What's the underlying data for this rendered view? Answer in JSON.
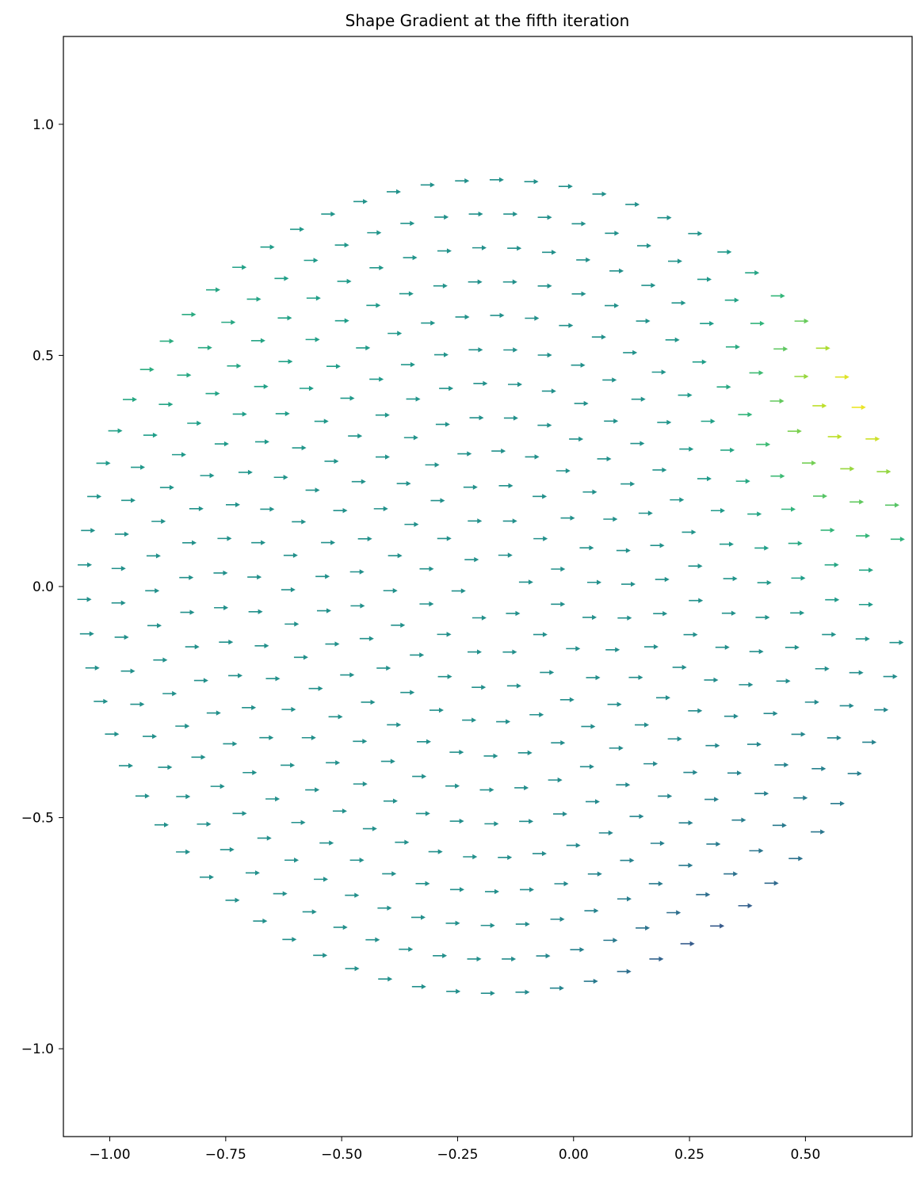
{
  "chart_data": {
    "type": "quiver",
    "title": "Shape Gradient at the fifth iteration",
    "xlabel": "",
    "ylabel": "",
    "xlim": [
      -1.1,
      0.73
    ],
    "ylim": [
      -1.19,
      1.19
    ],
    "xticks": [
      -1.0,
      -0.75,
      -0.5,
      -0.25,
      0.0,
      0.25,
      0.5
    ],
    "xtick_labels": [
      "−1.00",
      "−0.75",
      "−0.50",
      "−0.25",
      "0.00",
      "0.25",
      "0.50"
    ],
    "yticks": [
      1.0,
      0.5,
      0.0,
      -0.5,
      -1.0
    ],
    "ytick_labels": [
      "1.0",
      "0.5",
      "0.0",
      "−0.5",
      "−1.0"
    ],
    "grid": false,
    "colormap": "viridis",
    "domain": {
      "shape": "disk cut by vertical line",
      "center": [
        -0.175,
        0.0
      ],
      "radius": 0.88,
      "x_max": 0.7,
      "rings": 12
    },
    "vector_direction": [
      1,
      0
    ],
    "magnitude_field": {
      "description": "low at bottom-right, high (yellow) near right edge around y=0.45, mid elsewhere",
      "base": 0.5,
      "high_peak": {
        "x": 0.63,
        "y": 0.42,
        "amp": 0.48
      },
      "low_peak": {
        "x": 0.45,
        "y": -0.97,
        "amp": -0.5
      }
    },
    "colors": {
      "low": "#440154",
      "mid": "#21918c",
      "high": "#fde725"
    }
  }
}
